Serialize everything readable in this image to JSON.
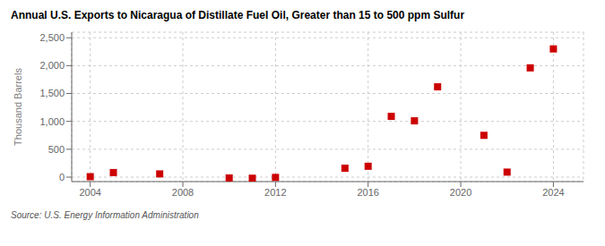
{
  "chart_data": {
    "type": "scatter",
    "title": "Annual U.S. Exports to Nicaragua of Distillate Fuel Oil, Greater than 15 to 500 ppm Sulfur",
    "ylabel": "Thousand Barrels",
    "source": "Source: U.S. Energy Information Administration",
    "x": [
      2004,
      2005,
      2007,
      2010,
      2011,
      2012,
      2015,
      2016,
      2017,
      2018,
      2019,
      2021,
      2022,
      2023,
      2024
    ],
    "values": [
      8,
      82,
      58,
      -15,
      -20,
      -5,
      160,
      195,
      1090,
      1010,
      1620,
      750,
      90,
      1960,
      2300
    ],
    "color": "#cc0000",
    "marker": "square",
    "xlim": [
      2003.2,
      2025.3
    ],
    "xticks": [
      2004,
      2008,
      2012,
      2016,
      2020,
      2024
    ],
    "ylim": [
      -80,
      2600
    ],
    "yticks": [
      0,
      500,
      {
        "value": 1000,
        "label": "1,000"
      },
      {
        "value": 1500,
        "label": "1,500"
      },
      {
        "value": 2000,
        "label": "2,000"
      },
      {
        "value": 2500,
        "label": "2,500"
      }
    ],
    "grid": true
  }
}
